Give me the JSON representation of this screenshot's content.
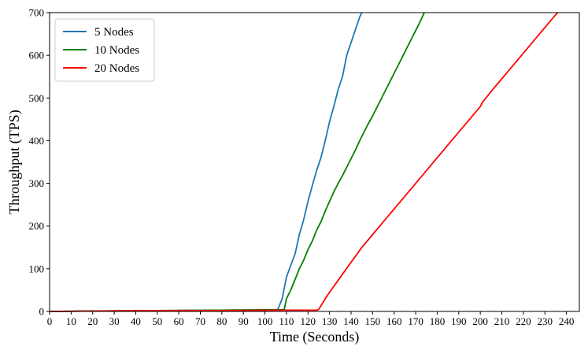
{
  "chart_data": {
    "type": "line",
    "title": "",
    "xlabel": "Time (Seconds)",
    "ylabel": "Throughput (TPS)",
    "xlim": [
      0,
      246
    ],
    "ylim": [
      0,
      700
    ],
    "x_ticks": [
      0,
      10,
      20,
      30,
      40,
      50,
      60,
      70,
      80,
      90,
      100,
      110,
      120,
      130,
      140,
      150,
      160,
      170,
      180,
      190,
      200,
      210,
      220,
      230,
      240
    ],
    "y_ticks": [
      0,
      100,
      200,
      300,
      400,
      500,
      600,
      700
    ],
    "grid": false,
    "legend_position": "top-left",
    "series": [
      {
        "name": "5 Nodes",
        "color": "#1f77b4",
        "points": [
          [
            0,
            0
          ],
          [
            20,
            1
          ],
          [
            50,
            2
          ],
          [
            80,
            3
          ],
          [
            105,
            4
          ],
          [
            106,
            5
          ],
          [
            108,
            30
          ],
          [
            110,
            80
          ],
          [
            112,
            108
          ],
          [
            114,
            135
          ],
          [
            116,
            180
          ],
          [
            118,
            215
          ],
          [
            120,
            258
          ],
          [
            122,
            295
          ],
          [
            124,
            330
          ],
          [
            126,
            360
          ],
          [
            128,
            400
          ],
          [
            130,
            445
          ],
          [
            132,
            480
          ],
          [
            134,
            520
          ],
          [
            136,
            550
          ],
          [
            138,
            600
          ],
          [
            140,
            630
          ],
          [
            142,
            660
          ],
          [
            144,
            690
          ],
          [
            145,
            700
          ]
        ]
      },
      {
        "name": "10 Nodes",
        "color": "#008000",
        "points": [
          [
            0,
            0
          ],
          [
            20,
            1
          ],
          [
            50,
            2
          ],
          [
            80,
            3
          ],
          [
            108,
            4
          ],
          [
            109,
            5
          ],
          [
            110,
            30
          ],
          [
            112,
            50
          ],
          [
            114,
            75
          ],
          [
            116,
            100
          ],
          [
            118,
            120
          ],
          [
            120,
            145
          ],
          [
            122,
            165
          ],
          [
            124,
            190
          ],
          [
            126,
            210
          ],
          [
            128,
            235
          ],
          [
            130,
            258
          ],
          [
            132,
            280
          ],
          [
            134,
            300
          ],
          [
            136,
            318
          ],
          [
            138,
            338
          ],
          [
            140,
            358
          ],
          [
            142,
            378
          ],
          [
            144,
            400
          ],
          [
            146,
            420
          ],
          [
            148,
            440
          ],
          [
            150,
            458
          ],
          [
            152,
            478
          ],
          [
            154,
            498
          ],
          [
            156,
            518
          ],
          [
            158,
            538
          ],
          [
            160,
            558
          ],
          [
            162,
            578
          ],
          [
            164,
            598
          ],
          [
            166,
            618
          ],
          [
            168,
            638
          ],
          [
            170,
            658
          ],
          [
            172,
            678
          ],
          [
            174,
            700
          ]
        ]
      },
      {
        "name": "20 Nodes",
        "color": "#ff0000",
        "points": [
          [
            0,
            0
          ],
          [
            20,
            1
          ],
          [
            50,
            2
          ],
          [
            80,
            2
          ],
          [
            110,
            3
          ],
          [
            124,
            3
          ],
          [
            125,
            5
          ],
          [
            128,
            30
          ],
          [
            130,
            45
          ],
          [
            135,
            80
          ],
          [
            140,
            115
          ],
          [
            145,
            150
          ],
          [
            150,
            180
          ],
          [
            155,
            210
          ],
          [
            160,
            240
          ],
          [
            165,
            270
          ],
          [
            170,
            300
          ],
          [
            175,
            330
          ],
          [
            180,
            360
          ],
          [
            185,
            390
          ],
          [
            190,
            420
          ],
          [
            195,
            450
          ],
          [
            200,
            480
          ],
          [
            201,
            490
          ],
          [
            205,
            515
          ],
          [
            210,
            545
          ],
          [
            215,
            575
          ],
          [
            220,
            605
          ],
          [
            225,
            635
          ],
          [
            230,
            665
          ],
          [
            235,
            695
          ],
          [
            236,
            700
          ]
        ]
      }
    ]
  }
}
